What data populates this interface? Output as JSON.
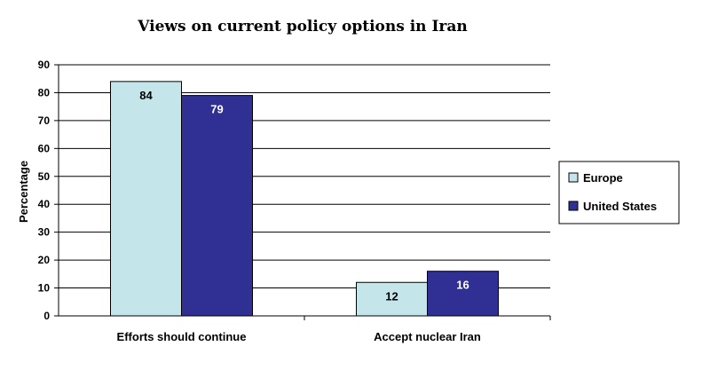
{
  "chart_data": {
    "type": "bar",
    "title": "Views on current policy options in Iran",
    "ylabel": "Percentage",
    "xlabel": "",
    "ylim": [
      0,
      90
    ],
    "yticks": [
      0,
      10,
      20,
      30,
      40,
      50,
      60,
      70,
      80,
      90
    ],
    "grid": true,
    "legend_position": "right",
    "categories": [
      "Efforts should continue",
      "Accept nuclear Iran"
    ],
    "series": [
      {
        "name": "Europe",
        "values": [
          84,
          12
        ],
        "color": "#c4e6ea",
        "label_color": "#000000"
      },
      {
        "name": "United States",
        "values": [
          79,
          16
        ],
        "color": "#2f2f94",
        "label_color": "#ffffff"
      }
    ]
  }
}
